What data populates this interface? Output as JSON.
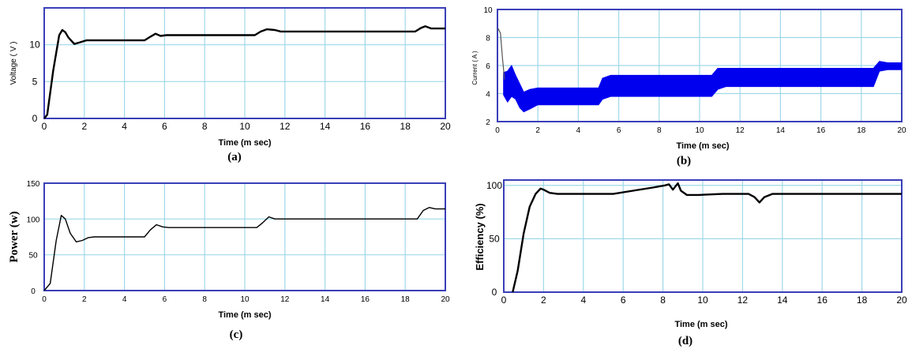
{
  "colors": {
    "frame": "#3a3fb8",
    "grid": "#9fd8ea",
    "trace": "#000000",
    "trace_band": "#0000ee"
  },
  "chart_data": [
    {
      "id": "a",
      "type": "line",
      "caption": "(a)",
      "xlabel": "Time (m sec)",
      "ylabel": "Voltage ( V )",
      "xlim": [
        0,
        20
      ],
      "ylim": [
        0,
        15
      ],
      "xticks": [
        "0",
        "2",
        "4",
        "6",
        "8",
        "10",
        "12",
        "14",
        "16",
        "18",
        "20"
      ],
      "yticks": [
        "0",
        "5",
        "10"
      ],
      "series": [
        {
          "x": [
            0,
            0.15,
            0.45,
            0.75,
            0.9,
            1.05,
            1.2,
            1.5,
            1.75,
            2.1,
            2.5,
            5.0,
            5.3,
            5.55,
            5.8,
            6.1,
            10.5,
            10.8,
            11.1,
            11.5,
            11.8,
            18.5,
            18.8,
            19.0,
            19.3,
            20
          ],
          "y": [
            0,
            0.5,
            6.5,
            11.3,
            12.0,
            11.7,
            11.0,
            10.1,
            10.3,
            10.6,
            10.6,
            10.6,
            11.1,
            11.5,
            11.2,
            11.3,
            11.3,
            11.8,
            12.1,
            12.0,
            11.8,
            11.8,
            12.3,
            12.5,
            12.2,
            12.2
          ]
        }
      ]
    },
    {
      "id": "b",
      "type": "line",
      "caption": "(b)",
      "xlabel": "Time (m sec)",
      "ylabel": "Current ( A )",
      "xlim": [
        0,
        20
      ],
      "ylim": [
        2,
        10
      ],
      "xticks": [
        "0",
        "2",
        "4",
        "6",
        "8",
        "10",
        "12",
        "14",
        "16",
        "18",
        "20"
      ],
      "yticks": [
        "2",
        "4",
        "6",
        "8",
        "10"
      ],
      "spike": {
        "x": [
          0,
          0.05,
          0.15,
          0.25,
          0.35
        ],
        "y": [
          8.5,
          8.6,
          8.3,
          6.5,
          5.0
        ]
      },
      "band": {
        "x": [
          0.3,
          0.5,
          0.7,
          0.9,
          1.1,
          1.3,
          1.6,
          2.0,
          5.0,
          5.2,
          5.6,
          10.6,
          10.9,
          11.3,
          18.6,
          18.9,
          19.3,
          20
        ],
        "upper": [
          5.5,
          5.6,
          6.0,
          5.3,
          4.7,
          4.1,
          4.3,
          4.4,
          4.4,
          5.1,
          5.3,
          5.3,
          5.8,
          5.8,
          5.8,
          6.3,
          6.2,
          6.2
        ],
        "lower": [
          3.9,
          3.4,
          3.8,
          3.6,
          3.0,
          2.7,
          2.9,
          3.2,
          3.2,
          3.6,
          3.8,
          3.8,
          4.3,
          4.5,
          4.5,
          5.6,
          5.7,
          5.7
        ]
      }
    },
    {
      "id": "c",
      "type": "line",
      "caption": "(c)",
      "xlabel": "Time (m sec)",
      "ylabel": "Power (w)",
      "xlim": [
        0,
        20
      ],
      "ylim": [
        0,
        150
      ],
      "xticks": [
        "0",
        "2",
        "4",
        "6",
        "8",
        "10",
        "12",
        "14",
        "16",
        "18",
        "20"
      ],
      "yticks": [
        "0",
        "50",
        "100",
        "150"
      ],
      "series": [
        {
          "x": [
            0,
            0.3,
            0.6,
            0.85,
            1.05,
            1.3,
            1.6,
            1.9,
            2.2,
            2.5,
            5.0,
            5.3,
            5.6,
            5.9,
            6.2,
            10.6,
            10.9,
            11.2,
            11.5,
            12.0,
            18.6,
            18.9,
            19.2,
            19.5,
            20
          ],
          "y": [
            0,
            10,
            70,
            105,
            100,
            80,
            68,
            70,
            74,
            75,
            75,
            85,
            92,
            89,
            88,
            88,
            95,
            103,
            100,
            100,
            100,
            112,
            116,
            114,
            114
          ]
        }
      ]
    },
    {
      "id": "d",
      "type": "line",
      "caption": "(d)",
      "xlabel": "Time (m sec)",
      "ylabel": "Efficiency (%)",
      "xlim": [
        0,
        20
      ],
      "ylim": [
        0,
        105
      ],
      "xticks": [
        "0",
        "2",
        "4",
        "6",
        "8",
        "10",
        "12",
        "14",
        "16",
        "18",
        "20"
      ],
      "yticks": [
        "0",
        "50",
        "100"
      ],
      "series": [
        {
          "x": [
            0.45,
            0.7,
            1.0,
            1.3,
            1.6,
            1.85,
            2.0,
            2.3,
            2.7,
            3.2,
            4.0,
            5.5,
            6.5,
            7.5,
            8.1,
            8.3,
            8.5,
            8.75,
            8.9,
            9.2,
            9.8,
            11.0,
            12.3,
            12.6,
            12.85,
            13.1,
            13.5,
            15.0,
            20
          ],
          "y": [
            0,
            20,
            55,
            80,
            92,
            97,
            96,
            93,
            92,
            92,
            92,
            92,
            95,
            98,
            100,
            101,
            96,
            102,
            95,
            91,
            91,
            92,
            92,
            89,
            84,
            89,
            92,
            92,
            92
          ]
        }
      ]
    }
  ]
}
